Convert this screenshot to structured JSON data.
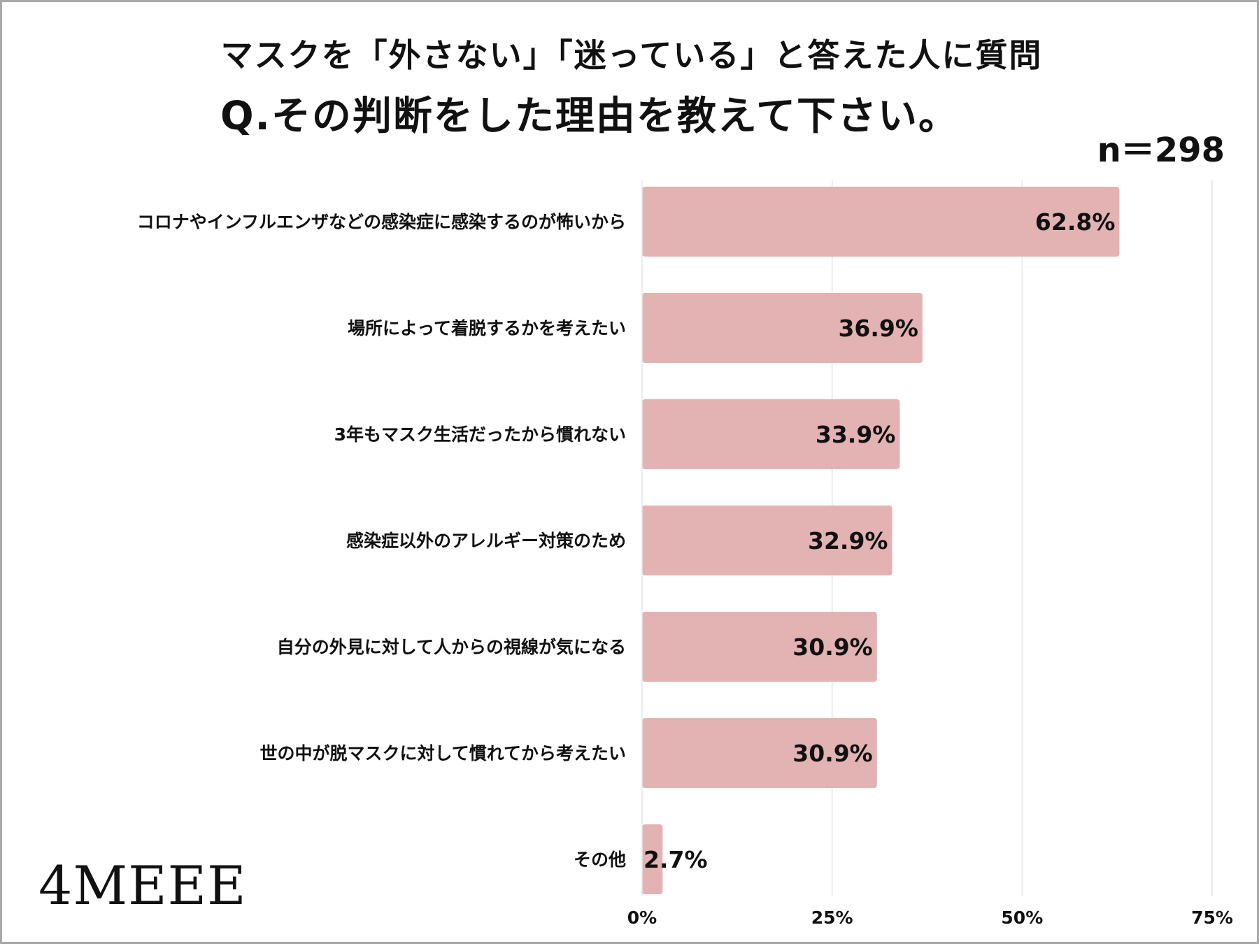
{
  "header": {
    "title_line1": "マスクを「外さない」「迷っている」と答えた人に質問",
    "title_line2": "Q.その判断をした理由を教えて下さい。",
    "sample_size": "n＝298"
  },
  "brand": {
    "logo": "4MEEE"
  },
  "colors": {
    "bar": "#e3b2b3",
    "grid": "#e6e6e6",
    "text": "#111111"
  },
  "chart_data": {
    "type": "bar",
    "orientation": "horizontal",
    "title": "Q.その判断をした理由を教えて下さい。",
    "categories": [
      "コロナやインフルエンザなどの感染症に感染するのが怖いから",
      "場所によって着脱するかを考えたい",
      "3年もマスク生活だったから慣れない",
      "感染症以外のアレルギー対策のため",
      "自分の外見に対して人からの視線が気になる",
      "世の中が脱マスクに対して慣れてから考えたい",
      "その他"
    ],
    "values": [
      62.8,
      36.9,
      33.9,
      32.9,
      30.9,
      30.9,
      2.7
    ],
    "value_labels": [
      "62.8%",
      "36.9%",
      "33.9%",
      "32.9%",
      "30.9%",
      "30.9%",
      "2.7%"
    ],
    "xlim": [
      0,
      75
    ],
    "ticks": [
      0,
      25,
      50,
      75
    ],
    "tick_labels": [
      "0%",
      "25%",
      "50%",
      "75%"
    ],
    "grid": true,
    "xlabel": "",
    "ylabel": ""
  }
}
